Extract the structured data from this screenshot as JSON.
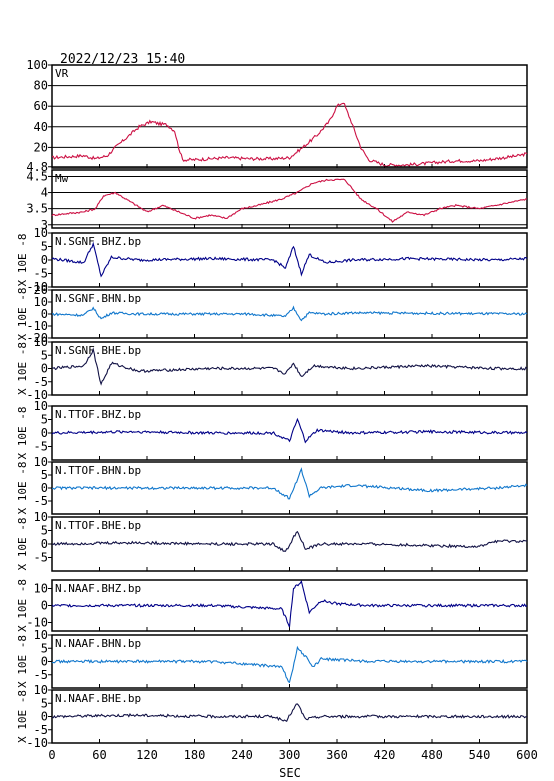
{
  "header": {
    "datetime": "2022/12/23  15:40"
  },
  "xaxis": {
    "label": "SEC",
    "ticks": [
      0,
      60,
      120,
      180,
      240,
      300,
      360,
      420,
      480,
      540,
      600
    ],
    "range": [
      0,
      600
    ]
  },
  "colors": {
    "red": "#cc1144",
    "navy": "#000088",
    "blue": "#1177cc",
    "dark": "#111144"
  },
  "chart_data": [
    {
      "type": "line",
      "title": "VR",
      "ylim": [
        0,
        100
      ],
      "yticks": [
        20,
        40,
        60,
        80,
        100
      ],
      "grid": true,
      "series": [
        {
          "color": "red",
          "points": [
            [
              0,
              10
            ],
            [
              20,
              11
            ],
            [
              40,
              12
            ],
            [
              55,
              9
            ],
            [
              70,
              12
            ],
            [
              80,
              20
            ],
            [
              95,
              30
            ],
            [
              110,
              40
            ],
            [
              125,
              45
            ],
            [
              135,
              43
            ],
            [
              145,
              42
            ],
            [
              155,
              36
            ],
            [
              160,
              20
            ],
            [
              165,
              8
            ],
            [
              180,
              8
            ],
            [
              220,
              10
            ],
            [
              250,
              9
            ],
            [
              280,
              9
            ],
            [
              300,
              10
            ],
            [
              320,
              22
            ],
            [
              335,
              32
            ],
            [
              350,
              45
            ],
            [
              360,
              60
            ],
            [
              368,
              64
            ],
            [
              378,
              45
            ],
            [
              390,
              20
            ],
            [
              400,
              8
            ],
            [
              420,
              3
            ],
            [
              450,
              3
            ],
            [
              480,
              5
            ],
            [
              510,
              7
            ],
            [
              540,
              7
            ],
            [
              570,
              10
            ],
            [
              590,
              12
            ],
            [
              600,
              14
            ]
          ]
        }
      ]
    },
    {
      "type": "line",
      "title": "Mw",
      "ylim": [
        2.9,
        4.7
      ],
      "yticks": [
        3.0,
        3.5,
        4.0,
        4.5,
        4.8
      ],
      "grid": true,
      "series": [
        {
          "color": "red",
          "points": [
            [
              0,
              3.3
            ],
            [
              40,
              3.4
            ],
            [
              55,
              3.5
            ],
            [
              65,
              3.9
            ],
            [
              80,
              4.0
            ],
            [
              100,
              3.7
            ],
            [
              120,
              3.4
            ],
            [
              140,
              3.6
            ],
            [
              160,
              3.4
            ],
            [
              180,
              3.2
            ],
            [
              200,
              3.3
            ],
            [
              220,
              3.2
            ],
            [
              240,
              3.5
            ],
            [
              260,
              3.6
            ],
            [
              290,
              3.8
            ],
            [
              310,
              4.0
            ],
            [
              330,
              4.3
            ],
            [
              350,
              4.4
            ],
            [
              370,
              4.4
            ],
            [
              390,
              3.8
            ],
            [
              410,
              3.5
            ],
            [
              430,
              3.1
            ],
            [
              450,
              3.4
            ],
            [
              470,
              3.3
            ],
            [
              490,
              3.5
            ],
            [
              510,
              3.6
            ],
            [
              540,
              3.5
            ],
            [
              560,
              3.6
            ],
            [
              580,
              3.7
            ],
            [
              600,
              3.8
            ]
          ]
        }
      ]
    },
    {
      "type": "line",
      "title": "N.SGNF.BHZ.bp",
      "ylabel": "X 10E -8",
      "ylim": [
        -10,
        10
      ],
      "yticks": [
        -10,
        -5,
        0,
        5,
        10
      ],
      "series": [
        {
          "color": "navy",
          "points": [
            [
              0,
              0.5
            ],
            [
              40,
              -1
            ],
            [
              52,
              6
            ],
            [
              62,
              -6
            ],
            [
              75,
              1
            ],
            [
              110,
              0
            ],
            [
              200,
              0.5
            ],
            [
              280,
              0
            ],
            [
              295,
              -3
            ],
            [
              305,
              5
            ],
            [
              315,
              -5
            ],
            [
              325,
              2
            ],
            [
              345,
              -1
            ],
            [
              380,
              0
            ],
            [
              450,
              0.5
            ],
            [
              560,
              0
            ],
            [
              600,
              0.5
            ]
          ]
        }
      ]
    },
    {
      "type": "line",
      "title": "N.SGNF.BHN.bp",
      "ylabel": "X 10E -8",
      "ylim": [
        -20,
        20
      ],
      "yticks": [
        -20,
        -10,
        0,
        10,
        20
      ],
      "series": [
        {
          "color": "blue",
          "points": [
            [
              0,
              0
            ],
            [
              40,
              -1
            ],
            [
              52,
              5
            ],
            [
              62,
              -4
            ],
            [
              75,
              1
            ],
            [
              110,
              0
            ],
            [
              250,
              0
            ],
            [
              295,
              -2
            ],
            [
              305,
              5
            ],
            [
              315,
              -5
            ],
            [
              325,
              1
            ],
            [
              345,
              0
            ],
            [
              380,
              1
            ],
            [
              600,
              0
            ]
          ]
        }
      ]
    },
    {
      "type": "line",
      "title": "N.SGNF.BHE.bp",
      "ylabel": "X 10E -8",
      "ylim": [
        -10,
        10
      ],
      "yticks": [
        -10,
        -5,
        0,
        5,
        10
      ],
      "series": [
        {
          "color": "dark",
          "points": [
            [
              0,
              0
            ],
            [
              40,
              1
            ],
            [
              52,
              7
            ],
            [
              62,
              -6
            ],
            [
              75,
              2
            ],
            [
              110,
              -1
            ],
            [
              200,
              0
            ],
            [
              280,
              0
            ],
            [
              295,
              -2
            ],
            [
              305,
              2
            ],
            [
              315,
              -3
            ],
            [
              330,
              1
            ],
            [
              380,
              0
            ],
            [
              470,
              1
            ],
            [
              560,
              0
            ],
            [
              600,
              0
            ]
          ]
        }
      ]
    },
    {
      "type": "line",
      "title": "N.TTOF.BHZ.bp",
      "ylabel": "X 10E -8",
      "ylim": [
        -10,
        10
      ],
      "yticks": [
        -5,
        0,
        5,
        10
      ],
      "series": [
        {
          "color": "navy",
          "points": [
            [
              0,
              0
            ],
            [
              100,
              0.5
            ],
            [
              200,
              0
            ],
            [
              280,
              0
            ],
            [
              300,
              -3
            ],
            [
              310,
              5
            ],
            [
              320,
              -3
            ],
            [
              335,
              1
            ],
            [
              380,
              0
            ],
            [
              480,
              0.5
            ],
            [
              600,
              0
            ]
          ]
        }
      ]
    },
    {
      "type": "line",
      "title": "N.TTOF.BHN.bp",
      "ylabel": "X 10E -8",
      "ylim": [
        -10,
        10
      ],
      "yticks": [
        -5,
        0,
        5,
        10
      ],
      "series": [
        {
          "color": "blue",
          "points": [
            [
              0,
              0
            ],
            [
              100,
              0
            ],
            [
              200,
              0
            ],
            [
              280,
              0
            ],
            [
              300,
              -4
            ],
            [
              315,
              7
            ],
            [
              325,
              -3
            ],
            [
              340,
              0
            ],
            [
              380,
              1
            ],
            [
              480,
              -1
            ],
            [
              560,
              0
            ],
            [
              600,
              1
            ]
          ]
        }
      ]
    },
    {
      "type": "line",
      "title": "N.TTOF.BHE.bp",
      "ylabel": "X 10E -8",
      "ylim": [
        -10,
        10
      ],
      "yticks": [
        -5,
        0,
        5,
        10
      ],
      "series": [
        {
          "color": "dark",
          "points": [
            [
              0,
              0
            ],
            [
              100,
              0.5
            ],
            [
              200,
              0
            ],
            [
              280,
              0
            ],
            [
              295,
              -3
            ],
            [
              310,
              5
            ],
            [
              320,
              -2
            ],
            [
              340,
              0
            ],
            [
              400,
              0
            ],
            [
              540,
              -1
            ],
            [
              560,
              1
            ],
            [
              600,
              1
            ]
          ]
        }
      ]
    },
    {
      "type": "line",
      "title": "N.NAAF.BHZ.bp",
      "ylabel": "X 10E -8",
      "ylim": [
        -15,
        15
      ],
      "yticks": [
        -10,
        0,
        10
      ],
      "series": [
        {
          "color": "navy",
          "points": [
            [
              0,
              0
            ],
            [
              100,
              0
            ],
            [
              200,
              0
            ],
            [
              290,
              -2
            ],
            [
              300,
              -12
            ],
            [
              305,
              10
            ],
            [
              315,
              14
            ],
            [
              325,
              -4
            ],
            [
              340,
              3
            ],
            [
              360,
              1
            ],
            [
              400,
              0
            ],
            [
              500,
              0
            ],
            [
              600,
              0
            ]
          ]
        }
      ]
    },
    {
      "type": "line",
      "title": "N.NAAF.BHN.bp",
      "ylabel": "X 10E -8",
      "ylim": [
        -10,
        10
      ],
      "yticks": [
        -5,
        0,
        5,
        10
      ],
      "series": [
        {
          "color": "blue",
          "points": [
            [
              0,
              0
            ],
            [
              100,
              0
            ],
            [
              200,
              0
            ],
            [
              290,
              -2
            ],
            [
              300,
              -8
            ],
            [
              310,
              5
            ],
            [
              320,
              2
            ],
            [
              330,
              -2
            ],
            [
              340,
              1
            ],
            [
              400,
              0
            ],
            [
              600,
              0
            ]
          ]
        }
      ]
    },
    {
      "type": "line",
      "title": "N.NAAF.BHE.bp",
      "ylabel": "X 10E -8",
      "ylim": [
        -10,
        10
      ],
      "yticks": [
        -10,
        -5,
        0,
        5,
        10
      ],
      "series": [
        {
          "color": "dark",
          "points": [
            [
              0,
              0
            ],
            [
              100,
              0.5
            ],
            [
              200,
              0
            ],
            [
              280,
              0
            ],
            [
              295,
              -2
            ],
            [
              310,
              5
            ],
            [
              320,
              -1
            ],
            [
              340,
              0
            ],
            [
              400,
              0
            ],
            [
              600,
              0
            ]
          ]
        }
      ]
    }
  ]
}
